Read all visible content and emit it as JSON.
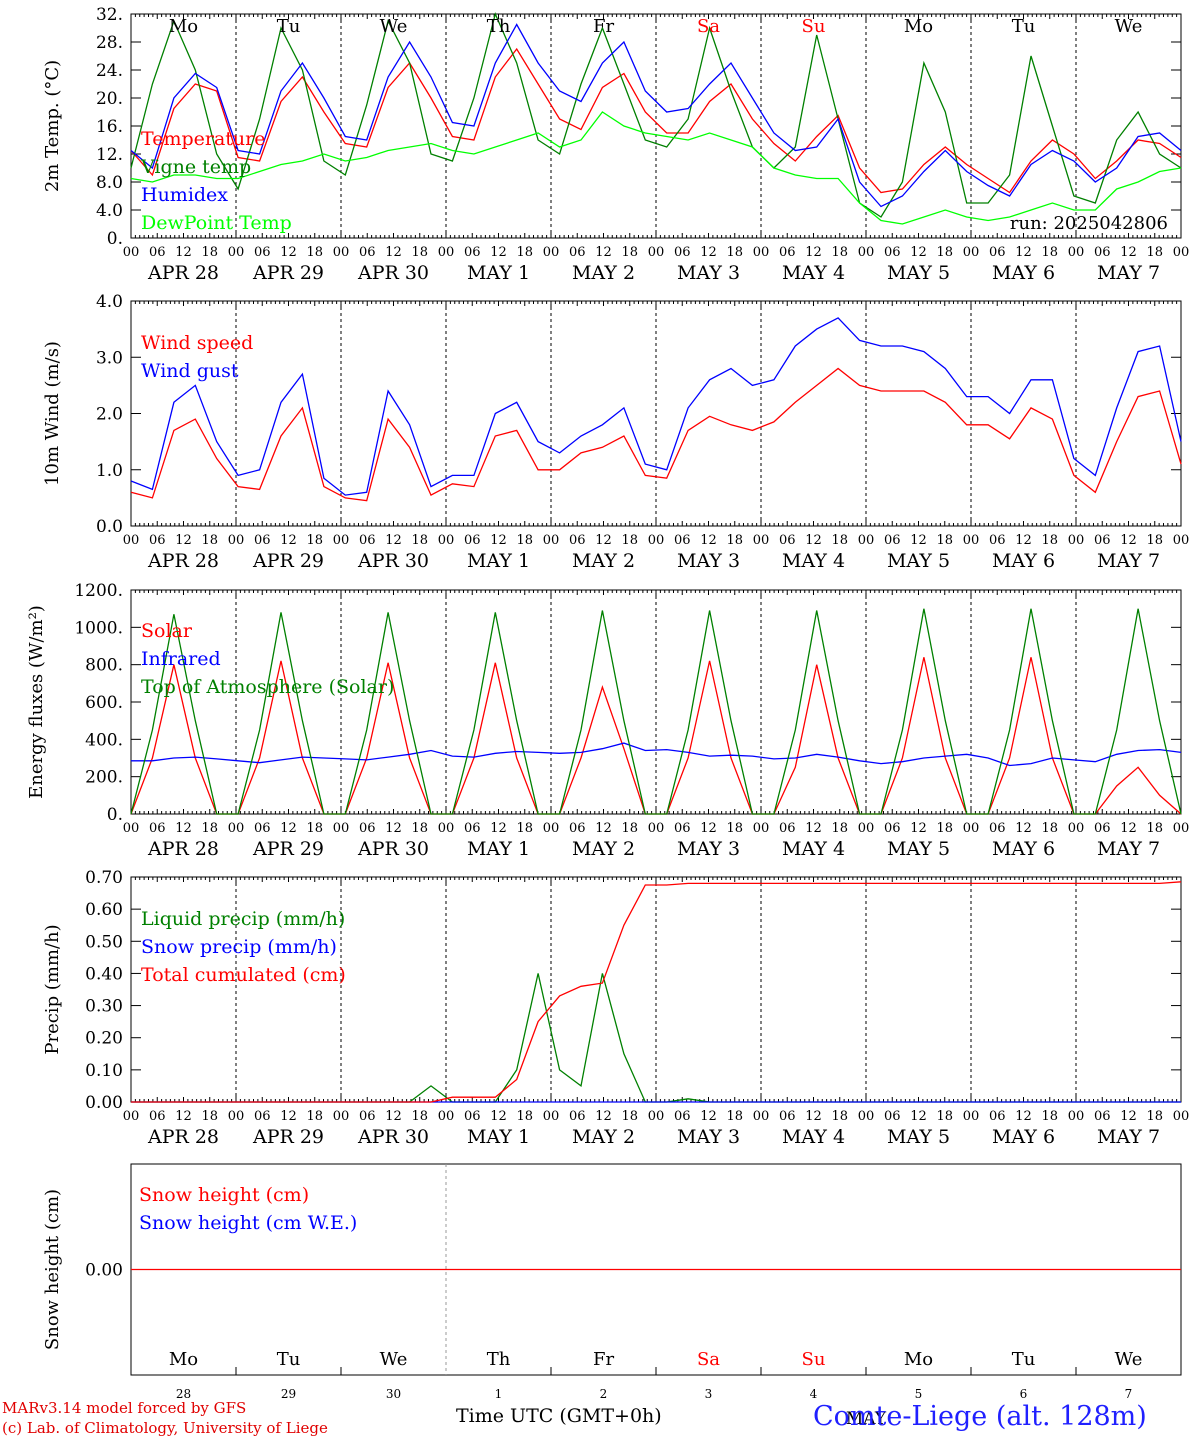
{
  "chart_data": [
    {
      "type": "line",
      "ylabel": "2m Temp. (°C)",
      "ylim": [
        0,
        32
      ],
      "yticks": [
        "0.",
        "4.0",
        "8.0",
        "12.",
        "16.",
        "20.",
        "24.",
        "28.",
        "32."
      ],
      "weekdays": [
        "Mo",
        "Tu",
        "We",
        "Th",
        "Fr",
        "Sa",
        "Su",
        "Mo",
        "Tu",
        "We"
      ],
      "run_label": "run: 2025042806",
      "x_start": "2025-04-28 00 UTC",
      "x_step_hours": 6,
      "series": [
        {
          "name": "Temperature",
          "color": "#ff0000",
          "values": [
            12.5,
            9,
            18.5,
            22,
            21,
            11.5,
            11,
            19.5,
            23,
            18,
            13.5,
            13,
            21.5,
            25,
            20,
            14.5,
            14,
            23,
            27,
            22,
            17,
            15.5,
            21.5,
            23.5,
            18,
            15,
            15,
            19.5,
            22,
            17,
            13.5,
            11,
            14.5,
            17.5,
            10,
            6.5,
            7,
            10.5,
            13,
            10.5,
            8.5,
            6.5,
            11,
            14,
            12,
            8.5,
            11,
            14,
            13.5,
            11.5
          ]
        },
        {
          "name": "Vigne temp",
          "color": "#008000",
          "values": [
            10,
            22,
            31,
            24,
            12,
            7,
            17,
            30,
            24,
            11,
            9,
            19,
            31,
            25,
            12,
            11,
            20,
            32,
            25,
            14,
            12,
            22,
            30,
            22,
            14,
            13,
            17,
            30,
            21,
            13,
            10,
            13,
            29,
            17,
            5,
            3,
            8,
            25,
            18,
            5,
            5,
            9,
            26,
            16,
            6,
            5,
            14,
            18,
            12,
            10
          ]
        },
        {
          "name": "Humidex",
          "color": "#0000ff",
          "values": [
            12.5,
            10,
            20,
            23.5,
            21.5,
            12.5,
            12,
            21,
            25,
            20,
            14.5,
            14,
            23,
            28,
            23,
            16.5,
            16,
            25,
            30.5,
            25,
            21,
            19.5,
            25,
            28,
            21,
            18,
            18.5,
            22,
            25,
            20,
            15,
            12.5,
            13,
            17,
            8,
            4.5,
            6,
            9.5,
            12.5,
            9.5,
            7.5,
            6,
            10.5,
            12.5,
            11,
            8,
            10,
            14.5,
            15,
            12.5
          ]
        },
        {
          "name": "DewPoint Temp",
          "color": "#00ff00",
          "values": [
            8.5,
            8,
            9,
            9,
            8.5,
            8.5,
            9.5,
            10.5,
            11,
            12,
            11,
            11.5,
            12.5,
            13,
            13.5,
            12.5,
            12,
            13,
            14,
            15,
            13,
            14,
            18,
            16,
            15,
            14.5,
            14,
            15,
            14,
            13,
            10,
            9,
            8.5,
            8.5,
            5,
            2.5,
            2,
            3,
            4,
            3,
            2.5,
            3,
            4,
            5,
            4,
            4,
            7,
            8,
            9.5,
            10
          ]
        }
      ]
    },
    {
      "type": "line",
      "ylabel": "10m Wind (m/s)",
      "ylim": [
        0,
        4
      ],
      "yticks": [
        "0.0",
        "1.0",
        "2.0",
        "3.0",
        "4.0"
      ],
      "x_start": "2025-04-28 00 UTC",
      "x_step_hours": 6,
      "series": [
        {
          "name": "Wind speed",
          "color": "#ff0000",
          "values": [
            0.6,
            0.5,
            1.7,
            1.9,
            1.2,
            0.7,
            0.65,
            1.6,
            2.1,
            0.7,
            0.5,
            0.45,
            1.9,
            1.4,
            0.55,
            0.75,
            0.7,
            1.6,
            1.7,
            1.0,
            1.0,
            1.3,
            1.4,
            1.6,
            0.9,
            0.85,
            1.7,
            1.95,
            1.8,
            1.7,
            1.85,
            2.2,
            2.5,
            2.8,
            2.5,
            2.4,
            2.4,
            2.4,
            2.2,
            1.8,
            1.8,
            1.55,
            2.1,
            1.9,
            0.9,
            0.6,
            1.5,
            2.3,
            2.4,
            1.1
          ]
        },
        {
          "name": "Wind gust",
          "color": "#0000ff",
          "values": [
            0.8,
            0.65,
            2.2,
            2.5,
            1.5,
            0.9,
            1.0,
            2.2,
            2.7,
            0.85,
            0.55,
            0.6,
            2.4,
            1.8,
            0.7,
            0.9,
            0.9,
            2.0,
            2.2,
            1.5,
            1.3,
            1.6,
            1.8,
            2.1,
            1.1,
            1.0,
            2.1,
            2.6,
            2.8,
            2.5,
            2.6,
            3.2,
            3.5,
            3.7,
            3.3,
            3.2,
            3.2,
            3.1,
            2.8,
            2.3,
            2.3,
            2.0,
            2.6,
            2.6,
            1.2,
            0.9,
            2.1,
            3.1,
            3.2,
            1.5
          ]
        }
      ]
    },
    {
      "type": "line",
      "ylabel": "Energy fluxes (W/m²)",
      "ylim": [
        0,
        1200
      ],
      "yticks": [
        "0.",
        "200.",
        "400.",
        "600.",
        "800.",
        "1000.",
        "1200."
      ],
      "x_start": "2025-04-28 00 UTC",
      "x_step_hours": 6,
      "series": [
        {
          "name": "Solar",
          "color": "#ff0000",
          "values": [
            0,
            300,
            800,
            300,
            0,
            0,
            300,
            820,
            300,
            0,
            0,
            300,
            810,
            300,
            0,
            0,
            300,
            810,
            300,
            0,
            0,
            300,
            680,
            350,
            0,
            0,
            300,
            820,
            300,
            0,
            0,
            250,
            800,
            300,
            0,
            0,
            300,
            840,
            300,
            0,
            0,
            300,
            840,
            300,
            0,
            0,
            150,
            250,
            100,
            0
          ]
        },
        {
          "name": "Infrared",
          "color": "#0000ff",
          "values": [
            285,
            285,
            300,
            305,
            295,
            285,
            275,
            290,
            305,
            300,
            295,
            290,
            305,
            320,
            340,
            310,
            305,
            325,
            335,
            330,
            325,
            330,
            350,
            380,
            340,
            345,
            330,
            310,
            315,
            310,
            295,
            300,
            320,
            305,
            285,
            270,
            280,
            300,
            310,
            320,
            300,
            260,
            270,
            300,
            290,
            280,
            320,
            340,
            345,
            330
          ]
        },
        {
          "name": "Top of Atmosphere (Solar)",
          "color": "#008000",
          "values": [
            0,
            450,
            1070,
            500,
            0,
            0,
            450,
            1080,
            500,
            0,
            0,
            450,
            1080,
            500,
            0,
            0,
            450,
            1080,
            500,
            0,
            0,
            450,
            1090,
            500,
            0,
            0,
            450,
            1090,
            500,
            0,
            0,
            450,
            1090,
            500,
            0,
            0,
            450,
            1100,
            500,
            0,
            0,
            450,
            1100,
            500,
            0,
            0,
            450,
            1100,
            500,
            0
          ]
        }
      ]
    },
    {
      "type": "line",
      "ylabel": "Precip (mm/h)",
      "ylim": [
        0,
        0.7
      ],
      "yticks": [
        "0.00",
        "0.10",
        "0.20",
        "0.30",
        "0.40",
        "0.50",
        "0.60",
        "0.70"
      ],
      "x_start": "2025-04-28 00 UTC",
      "x_step_hours": 6,
      "series": [
        {
          "name": "Liquid precip (mm/h)",
          "color": "#008000",
          "values": [
            0,
            0,
            0,
            0,
            0,
            0,
            0,
            0,
            0,
            0,
            0,
            0,
            0,
            0,
            0.05,
            0,
            0,
            0,
            0.1,
            0.4,
            0.1,
            0.05,
            0.4,
            0.15,
            0,
            0,
            0.01,
            0,
            0,
            0,
            0,
            0,
            0,
            0,
            0,
            0,
            0,
            0,
            0,
            0,
            0,
            0,
            0,
            0,
            0,
            0,
            0,
            0,
            0,
            0
          ]
        },
        {
          "name": "Snow precip (mm/h)",
          "color": "#0000ff",
          "values": [
            0,
            0,
            0,
            0,
            0,
            0,
            0,
            0,
            0,
            0,
            0,
            0,
            0,
            0,
            0,
            0,
            0,
            0,
            0,
            0,
            0,
            0,
            0,
            0,
            0,
            0,
            0,
            0,
            0,
            0,
            0,
            0,
            0,
            0,
            0,
            0,
            0,
            0,
            0,
            0,
            0,
            0,
            0,
            0,
            0,
            0,
            0,
            0,
            0,
            0
          ]
        },
        {
          "name": "Total cumulated (cm)",
          "color": "#ff0000",
          "values": [
            0,
            0,
            0,
            0,
            0,
            0,
            0,
            0,
            0,
            0,
            0,
            0,
            0,
            0,
            0,
            0.015,
            0.015,
            0.015,
            0.07,
            0.25,
            0.33,
            0.36,
            0.37,
            0.55,
            0.675,
            0.675,
            0.68,
            0.68,
            0.68,
            0.68,
            0.68,
            0.68,
            0.68,
            0.68,
            0.68,
            0.68,
            0.68,
            0.68,
            0.68,
            0.68,
            0.68,
            0.68,
            0.68,
            0.68,
            0.68,
            0.68,
            0.68,
            0.68,
            0.68,
            0.685
          ]
        }
      ]
    },
    {
      "type": "line",
      "ylabel": "Snow height (cm)",
      "ylim": [
        -1,
        1
      ],
      "yticks": [
        "0.00"
      ],
      "series": [
        {
          "name": "Snow height (cm)",
          "color": "#ff0000",
          "values": [
            0,
            0
          ]
        },
        {
          "name": "Snow height (cm W.E.)",
          "color": "#0000ff",
          "values": [
            0,
            0
          ]
        }
      ]
    }
  ],
  "date_labels": [
    "APR 28",
    "APR 29",
    "APR 30",
    "MAY  1",
    "MAY  2",
    "MAY  3",
    "MAY  4",
    "MAY  5",
    "MAY  6",
    "MAY  7"
  ],
  "hour_ticks": [
    "00",
    "06",
    "12",
    "18"
  ],
  "bottom_axis": {
    "weekdays": [
      "Mo",
      "Tu",
      "We",
      "Th",
      "Fr",
      "Sa",
      "Su",
      "Mo",
      "Tu",
      "We"
    ],
    "weekend_color": "#ff0000",
    "day_numbers": [
      "28",
      "29",
      "30",
      "1",
      "2",
      "3",
      "4",
      "5",
      "6",
      "7"
    ],
    "month": "MAY",
    "xlabel": "Time UTC (GMT+0h)"
  },
  "footer": {
    "credit_line1": "MARv3.14 model forced by GFS",
    "credit_line2": "(c) Lab. of Climatology, University of Liege",
    "station": "Comte-Liege (alt. 128m)"
  }
}
